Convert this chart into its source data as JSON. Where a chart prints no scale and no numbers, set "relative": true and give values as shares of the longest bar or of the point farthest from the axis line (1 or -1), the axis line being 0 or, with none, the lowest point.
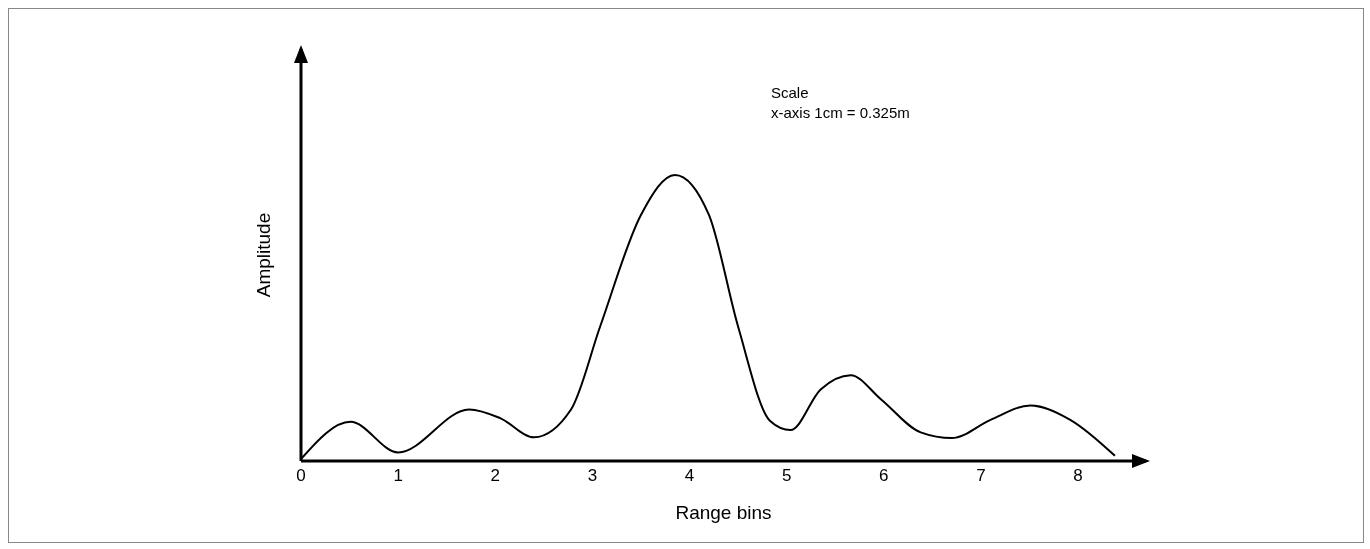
{
  "chart_data": {
    "type": "line",
    "xlabel": "Range bins",
    "ylabel": "Amplitude",
    "relative": true,
    "xlim": [
      0,
      8.7
    ],
    "xticks": [
      0,
      1,
      2,
      3,
      4,
      5,
      6,
      7,
      8
    ],
    "grid": false,
    "legend": false,
    "marker": "none",
    "line_style": "solid",
    "annotations": [
      "Scale",
      "x-axis 1cm = 0.325m"
    ],
    "series": [
      {
        "color": "#000000",
        "x": [
          0,
          0.51,
          1.0,
          1.73,
          2.05,
          2.4,
          2.78,
          3.08,
          3.5,
          3.85,
          4.2,
          4.5,
          4.83,
          5.04,
          5.35,
          5.66,
          5.97,
          6.38,
          6.7,
          7.1,
          7.51,
          7.92,
          8.38
        ],
        "values": [
          0.007,
          0.137,
          0.03,
          0.18,
          0.15,
          0.083,
          0.18,
          0.47,
          0.86,
          1,
          0.86,
          0.47,
          0.14,
          0.108,
          0.25,
          0.3,
          0.216,
          0.1,
          0.08,
          0.144,
          0.194,
          0.144,
          0.018
        ]
      }
    ]
  }
}
